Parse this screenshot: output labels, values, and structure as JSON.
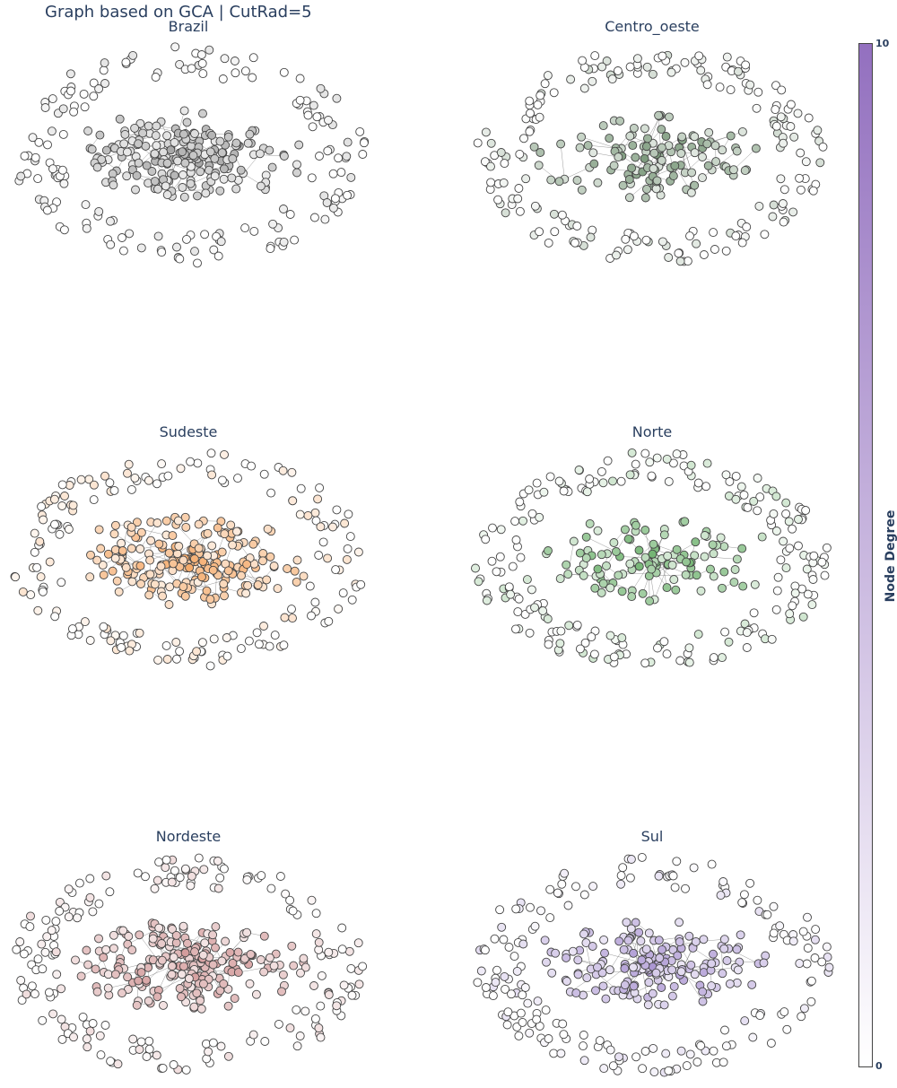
{
  "chart_data": {
    "type": "scatter",
    "title": "Graph based on GCA | CutRad=5",
    "subplots": [
      {
        "name": "Brazil",
        "color_high": "#9e9e9e",
        "node_count": 360,
        "core_fraction": 0.55
      },
      {
        "name": "Centro_oeste",
        "color_high": "#6e8f6e",
        "node_count": 320,
        "core_fraction": 0.4
      },
      {
        "name": "Sudeste",
        "color_high": "#f4a460",
        "node_count": 380,
        "core_fraction": 0.55
      },
      {
        "name": "Norte",
        "color_high": "#5faa5f",
        "node_count": 330,
        "core_fraction": 0.35
      },
      {
        "name": "Nordeste",
        "color_high": "#cd8c8c",
        "node_count": 400,
        "core_fraction": 0.55
      },
      {
        "name": "Sul",
        "color_high": "#a58ecf",
        "node_count": 360,
        "core_fraction": 0.5
      }
    ],
    "colorbar": {
      "title": "Node Degree",
      "min": 0,
      "max": 10,
      "tick_top": "10",
      "tick_bottom": "0",
      "color_low": "#ffffff",
      "color_high": "#9370bf"
    }
  }
}
